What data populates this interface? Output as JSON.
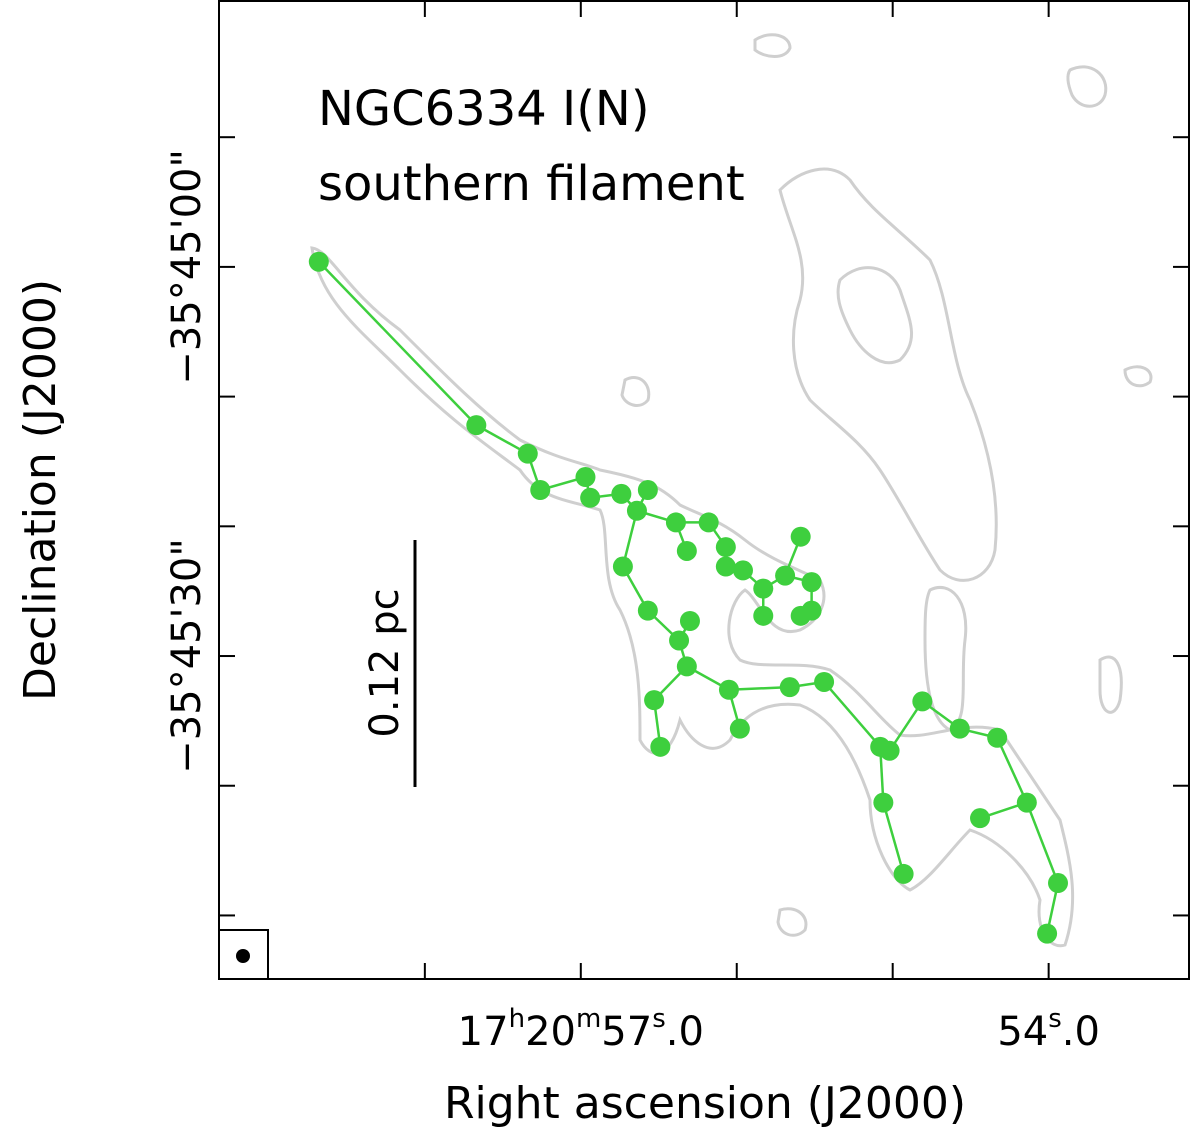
{
  "chart_data": {
    "type": "scatter",
    "title_lines": [
      "NGC6334 I(N)",
      "southern filament"
    ],
    "xlabel": "Right ascension (J2000)",
    "ylabel": "Declination (J2000)",
    "scale_bar_label": "0.12 pc",
    "color": "#3ecf3e",
    "xlim": [
      59.32,
      53.1
    ],
    "ylim": [
      -20.5,
      54.9
    ],
    "xticks": [
      {
        "value": 57,
        "label": "17h20m57s.0"
      },
      {
        "value": 54,
        "label": "54s.0"
      }
    ],
    "xminor": [
      58,
      56,
      55
    ],
    "yticks": [
      {
        "value": 0,
        "label": "−35°45'00\""
      },
      {
        "value": 30,
        "label": "−35°45'30\""
      }
    ],
    "yminor": [
      -10,
      10,
      20,
      40,
      50
    ],
    "x": [
      58.68,
      57.67,
      57.34,
      57.26,
      56.97,
      56.94,
      56.74,
      56.57,
      56.64,
      56.39,
      56.18,
      56.32,
      56.07,
      56.07,
      55.96,
      55.59,
      55.69,
      55.83,
      55.52,
      55.83,
      55.52,
      55.59,
      56.73,
      56.57,
      56.3,
      56.37,
      56.32,
      56.53,
      56.49,
      56.05,
      55.98,
      55.66,
      55.44,
      55.08,
      55.02,
      54.81,
      54.57,
      54.33,
      55.06,
      54.93,
      54.14,
      54.44,
      53.94,
      54.01
    ],
    "y": [
      -0.4,
      12.2,
      14.4,
      17.2,
      16.2,
      17.8,
      17.5,
      17.2,
      18.8,
      19.7,
      19.7,
      21.9,
      21.6,
      23.1,
      23.4,
      20.8,
      23.8,
      24.8,
      24.3,
      26.9,
      26.5,
      26.9,
      23.1,
      26.5,
      27.3,
      28.8,
      30.8,
      33.4,
      37.0,
      32.6,
      35.6,
      32.4,
      32.0,
      37.0,
      37.3,
      33.5,
      35.6,
      36.3,
      41.3,
      46.8,
      41.3,
      42.5,
      47.5,
      51.4
    ],
    "links": [
      [
        0,
        1
      ],
      [
        1,
        2
      ],
      [
        2,
        3
      ],
      [
        3,
        4
      ],
      [
        4,
        5
      ],
      [
        5,
        6
      ],
      [
        6,
        8
      ],
      [
        7,
        8
      ],
      [
        8,
        9
      ],
      [
        8,
        22
      ],
      [
        9,
        11
      ],
      [
        9,
        10
      ],
      [
        10,
        12
      ],
      [
        12,
        13
      ],
      [
        13,
        14
      ],
      [
        14,
        17
      ],
      [
        17,
        16
      ],
      [
        16,
        15
      ],
      [
        16,
        18
      ],
      [
        18,
        20
      ],
      [
        20,
        21
      ],
      [
        17,
        19
      ],
      [
        22,
        23
      ],
      [
        23,
        25
      ],
      [
        25,
        24
      ],
      [
        25,
        26
      ],
      [
        26,
        27
      ],
      [
        27,
        28
      ],
      [
        26,
        29
      ],
      [
        29,
        30
      ],
      [
        29,
        31
      ],
      [
        31,
        32
      ],
      [
        32,
        33
      ],
      [
        33,
        34
      ],
      [
        34,
        35
      ],
      [
        35,
        36
      ],
      [
        36,
        37
      ],
      [
        37,
        40
      ],
      [
        40,
        41
      ],
      [
        40,
        42
      ],
      [
        42,
        43
      ],
      [
        33,
        38
      ],
      [
        38,
        39
      ]
    ]
  }
}
